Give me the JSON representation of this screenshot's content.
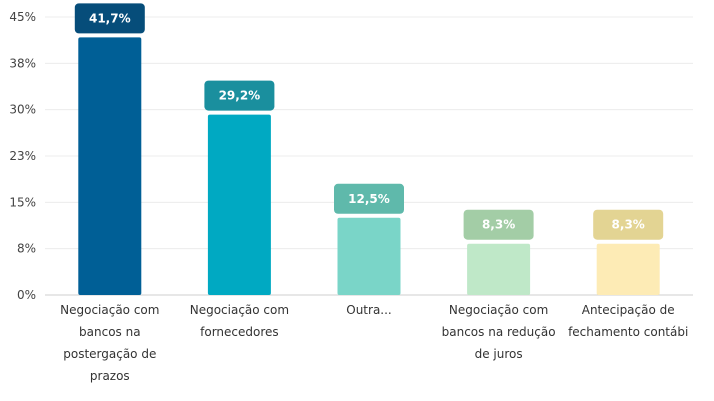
{
  "chart_data": {
    "type": "bar",
    "categories": [
      [
        "Negociação com",
        "bancos na",
        "postergação de",
        "prazos"
      ],
      [
        "Negociação com",
        "fornecedores"
      ],
      [
        "Outra..."
      ],
      [
        "Negociação com",
        "bancos na redução",
        "de juros"
      ],
      [
        "Antecipação de",
        "fechamento contábi"
      ]
    ],
    "values": [
      41.7,
      29.2,
      12.5,
      8.3,
      8.3
    ],
    "data_labels": [
      "41,7%",
      "29,2%",
      "12,5%",
      "8,3%",
      "8,3%"
    ],
    "bar_colors": [
      "#005f96",
      "#00a9c2",
      "#7ad5c8",
      "#bfe8c8",
      "#fdebb5"
    ],
    "label_colors": [
      "#064d7a",
      "#1a8f9e",
      "#5fb9ab",
      "#a3cda6",
      "#e3d493"
    ],
    "ylim": [
      0,
      45
    ],
    "yticks": [
      0,
      7.5,
      15,
      22.5,
      30,
      37.5,
      45
    ],
    "ytick_labels": [
      "0%",
      "8%",
      "15%",
      "23%",
      "30%",
      "38%",
      "45%"
    ],
    "grid": true,
    "title": "",
    "xlabel": "",
    "ylabel": ""
  }
}
